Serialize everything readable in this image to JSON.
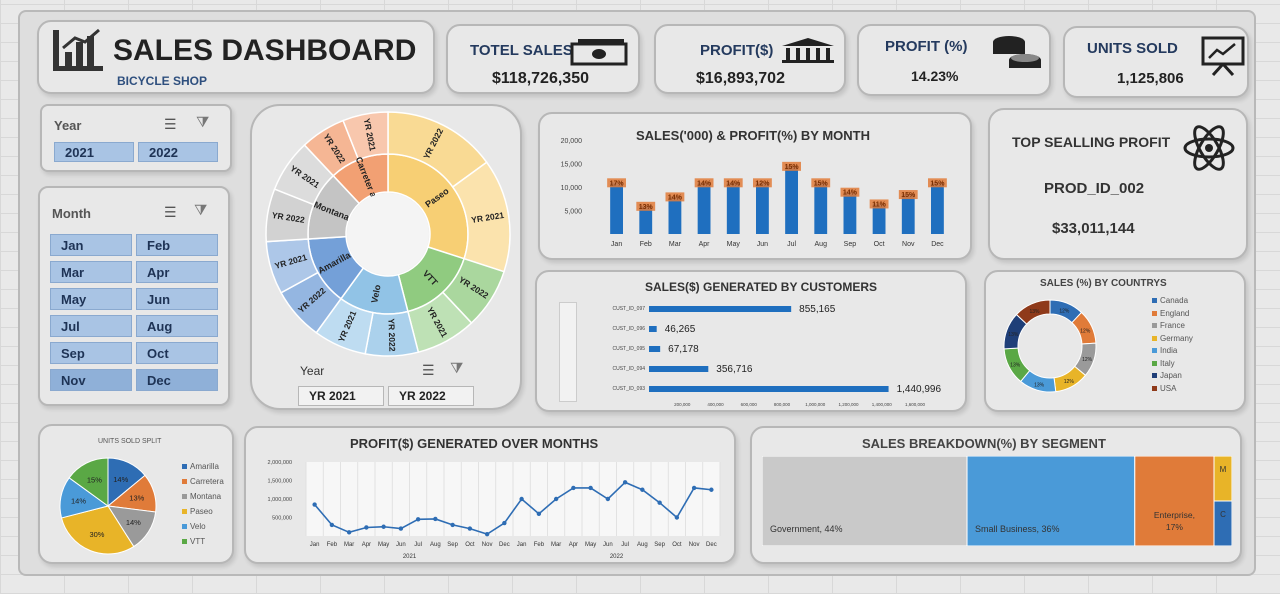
{
  "title": {
    "main": "SALES DASHBOARD",
    "sub": "BICYCLE SHOP"
  },
  "kpis": [
    {
      "label": "TOTEL SALES",
      "value": "$118,726,350",
      "icon": "cash-icon"
    },
    {
      "label": "PROFIT($)",
      "value": "$16,893,702",
      "icon": "bank-icon"
    },
    {
      "label": "PROFIT (%)",
      "value": "14.23%",
      "icon": "coins-icon"
    },
    {
      "label": "UNITS SOLD",
      "value": "1,125,806",
      "icon": "presentation-chart-icon"
    }
  ],
  "year_slicer": {
    "header": "Year",
    "options": [
      "2021",
      "2022"
    ]
  },
  "month_slicer": {
    "header": "Month",
    "options": [
      "Jan",
      "Feb",
      "Mar",
      "Apr",
      "May",
      "Jun",
      "Jul",
      "Aug",
      "Sep",
      "Oct",
      "Nov",
      "Dec"
    ]
  },
  "sunburst_slicer": {
    "header": "Year",
    "options": [
      "YR 2021",
      "YR 2022"
    ]
  },
  "top_profit": {
    "label": "TOP SEALLING PROFIT",
    "product": "PROD_ID_002",
    "value": "$33,011,144",
    "icon": "atom-icon"
  },
  "colors": {
    "bar": "#1f6fbf",
    "line": "#2e6db4",
    "slicer": "#a9c4e4",
    "label_bg": "#e07b39"
  },
  "chart_data": [
    {
      "id": "sunburst",
      "type": "sunburst",
      "inner": [
        {
          "name": "Paseo",
          "value": 30,
          "color": "#f6c65b"
        },
        {
          "name": "VTT",
          "value": 16,
          "color": "#7cc26a"
        },
        {
          "name": "Velo",
          "value": 14,
          "color": "#7db8e2"
        },
        {
          "name": "Amarilla",
          "value": 14,
          "color": "#5b8fd1"
        },
        {
          "name": "Montana",
          "value": 14,
          "color": "#b9b9b9"
        },
        {
          "name": "Carretera",
          "value": 12,
          "color": "#f08f5a"
        }
      ],
      "inner_labels": [
        "Paseo",
        "VTT",
        "Velo",
        "Amarilla",
        "Montana",
        "Carreter a"
      ],
      "outer_labels": [
        [
          "YR 2022",
          "YR 2021"
        ],
        [
          "YR 2022",
          "YR 2021"
        ],
        [
          "YR 2022",
          "YR 2021"
        ],
        [
          "YR 2022",
          "YR 2021"
        ],
        [
          "YR 2022",
          "YR 2021"
        ],
        [
          "YR 2022",
          "YR 2021"
        ]
      ],
      "outer_split": [
        0.5,
        0.5,
        0.5,
        0.5,
        0.5,
        0.5
      ]
    },
    {
      "id": "monthly",
      "type": "bar",
      "title": "SALES('000) & PROFIT(%) BY MONTH",
      "categories": [
        "Jan",
        "Feb",
        "Mar",
        "Apr",
        "May",
        "Jun",
        "Jul",
        "Aug",
        "Sep",
        "Oct",
        "Nov",
        "Dec"
      ],
      "values": [
        11000,
        6000,
        8000,
        11000,
        11000,
        11000,
        14500,
        11000,
        9000,
        6500,
        8500,
        11000
      ],
      "data_labels": [
        "17%",
        "13%",
        "14%",
        "14%",
        "14%",
        "12%",
        "15%",
        "15%",
        "14%",
        "11%",
        "15%",
        "15%"
      ],
      "yticks": [
        "20,000",
        "15,000",
        "10,000",
        "5,000"
      ],
      "ylim": [
        0,
        20000
      ]
    },
    {
      "id": "customers",
      "type": "bar",
      "orientation": "horizontal",
      "title": "SALES($) GENERATED BY CUSTOMERS",
      "categories": [
        "CUST_ID_097",
        "CUST_ID_096",
        "CUST_ID_095",
        "CUST_ID_094",
        "CUST_ID_093"
      ],
      "values": [
        855165,
        46265,
        67178,
        356716,
        1440996
      ],
      "data_labels": [
        "855,165",
        "46,265",
        "67,178",
        "356,716",
        "1,440,996"
      ],
      "xticks": [
        "200,000",
        "400,000",
        "600,000",
        "800,000",
        "1,000,000",
        "1,200,000",
        "1,400,000",
        "1,600,000"
      ],
      "xlim": [
        0,
        1600000
      ]
    },
    {
      "id": "countries",
      "type": "pie",
      "donut": true,
      "title": "SALES (%) BY COUNTRYS",
      "categories": [
        "Canada",
        "England",
        "France",
        "Germany",
        "India",
        "Italy",
        "Japan",
        "USA"
      ],
      "values": [
        12,
        12,
        12,
        12,
        13,
        13,
        13,
        13
      ],
      "colors": [
        "#2e6db4",
        "#e07b39",
        "#9a9a9a",
        "#e8b428",
        "#4a9ad8",
        "#5aa845",
        "#1f3f78",
        "#8f3a1a"
      ],
      "data_labels": [
        "12%",
        "12%",
        "12%",
        "12%",
        "13%",
        "13%",
        "13%",
        "13%"
      ]
    },
    {
      "id": "units",
      "type": "pie",
      "title": "UNITS SOLD SPLIT",
      "categories": [
        "Amarilla",
        "Carretera",
        "Montana",
        "Paseo",
        "Velo",
        "VTT"
      ],
      "values": [
        14,
        13,
        14,
        30,
        14,
        15
      ],
      "colors": [
        "#2e6db4",
        "#e07b39",
        "#9a9a9a",
        "#e8b428",
        "#4a9ad8",
        "#5aa845"
      ],
      "data_labels": [
        "14%",
        "13%",
        "14%",
        "30%",
        "14%",
        "15%"
      ]
    },
    {
      "id": "profit_line",
      "type": "line",
      "title": "PROFIT($) GENERATED OVER MONTHS",
      "categories": [
        "Jan",
        "Feb",
        "Mar",
        "Apr",
        "May",
        "Jun",
        "Jul",
        "Aug",
        "Sep",
        "Oct",
        "Nov",
        "Dec",
        "Jan",
        "Feb",
        "Mar",
        "Apr",
        "May",
        "Jun",
        "Jul",
        "Aug",
        "Sep",
        "Oct",
        "Nov",
        "Dec"
      ],
      "groups": [
        "2021",
        "2022"
      ],
      "values": [
        850000,
        300000,
        100000,
        230000,
        250000,
        200000,
        450000,
        460000,
        300000,
        200000,
        50000,
        350000,
        1000000,
        600000,
        1000000,
        1300000,
        1300000,
        1000000,
        1450000,
        1250000,
        900000,
        500000,
        1300000,
        1250000
      ],
      "yticks": [
        "2,000,000",
        "1,500,000",
        "1,000,000",
        "500,000"
      ],
      "ylim": [
        0,
        2000000
      ]
    },
    {
      "id": "segments",
      "type": "treemap",
      "title": "SALES BREAKDOWN(%) BY SEGMENT",
      "items": [
        {
          "name": "Government",
          "label": "Government, 44%",
          "value": 44,
          "color": "#c9c9c9"
        },
        {
          "name": "Small Business",
          "label": "Small Business, 36%",
          "value": 36,
          "color": "#4a9ad8"
        },
        {
          "name": "Enterprise",
          "label": "Enterprise, 17%",
          "value": 17,
          "color": "#e07b39"
        },
        {
          "name": "M",
          "label": "M",
          "value": 1.5,
          "color": "#e8b428"
        },
        {
          "name": "C",
          "label": "C",
          "value": 1.5,
          "color": "#2e6db4"
        }
      ]
    }
  ]
}
